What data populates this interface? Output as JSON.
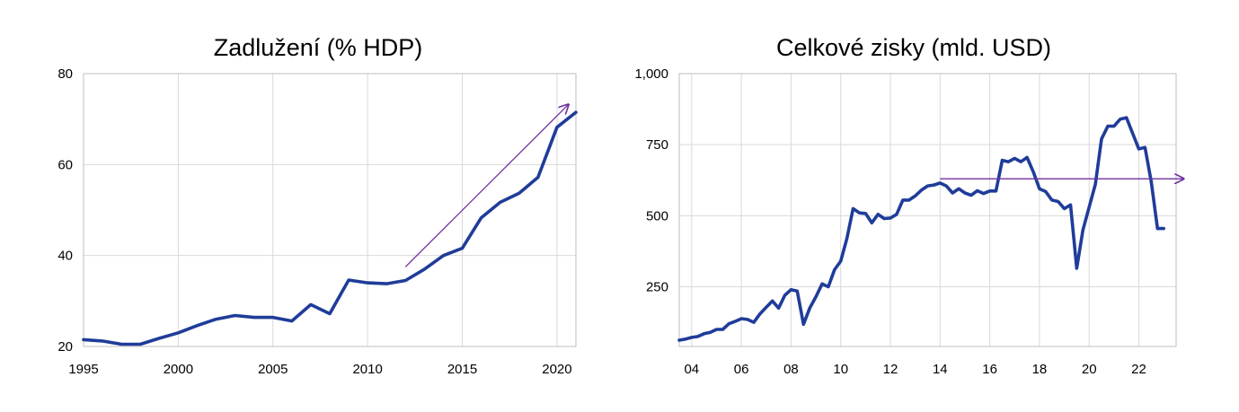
{
  "chart_data": [
    {
      "type": "line",
      "title": "Zadlužení (% HDP)",
      "xlabel": "",
      "ylabel": "",
      "xlim": [
        1995,
        2021
      ],
      "ylim": [
        20,
        80
      ],
      "x_ticks": [
        1995,
        2000,
        2005,
        2010,
        2015,
        2020
      ],
      "x_tick_labels": [
        "1995",
        "2000",
        "2005",
        "2010",
        "2015",
        "2020"
      ],
      "y_ticks": [
        20,
        40,
        60,
        80
      ],
      "y_tick_labels": [
        "20",
        "40",
        "60",
        "80"
      ],
      "grid": true,
      "line_color": "#1F3C99",
      "series": [
        {
          "x": [
            1995,
            1996,
            1997,
            1998,
            1999,
            2000,
            2001,
            2002,
            2003,
            2004,
            2005,
            2006,
            2007,
            2008,
            2009,
            2010,
            2011,
            2012,
            2013,
            2014,
            2015,
            2016,
            2017,
            2018,
            2019,
            2020,
            2021
          ],
          "values": [
            21.5,
            21.2,
            20.5,
            20.5,
            21.8,
            23.0,
            24.6,
            26.0,
            26.8,
            26.4,
            26.4,
            25.6,
            29.2,
            27.2,
            34.6,
            34.0,
            33.8,
            34.5,
            37.0,
            40.0,
            41.6,
            48.3,
            51.7,
            53.7,
            57.2,
            68.2,
            71.5
          ]
        }
      ],
      "annotations": [
        {
          "type": "arrow",
          "color": "#7030A0",
          "from": [
            2012,
            37.5
          ],
          "to": [
            2020.6,
            73.2
          ]
        }
      ]
    },
    {
      "type": "line",
      "title": "Celkové zisky (mld. USD)",
      "xlabel": "",
      "ylabel": "",
      "xlim": [
        2003.5,
        2023.5
      ],
      "ylim": [
        40,
        1000
      ],
      "x_ticks": [
        2004,
        2006,
        2008,
        2010,
        2012,
        2014,
        2016,
        2018,
        2020,
        2022
      ],
      "x_tick_labels": [
        "04",
        "06",
        "08",
        "10",
        "12",
        "14",
        "16",
        "18",
        "20",
        "22"
      ],
      "y_ticks": [
        250,
        500,
        750,
        1000
      ],
      "y_tick_labels": [
        "250",
        "500",
        "750",
        "1,000"
      ],
      "grid": true,
      "line_color": "#1F3C99",
      "series": [
        {
          "x": [
            2003.5,
            2003.75,
            2004.0,
            2004.25,
            2004.5,
            2004.75,
            2005.0,
            2005.25,
            2005.5,
            2005.75,
            2006.0,
            2006.25,
            2006.5,
            2006.75,
            2007.0,
            2007.25,
            2007.5,
            2007.75,
            2008.0,
            2008.25,
            2008.5,
            2008.75,
            2009.0,
            2009.25,
            2009.5,
            2009.75,
            2010.0,
            2010.25,
            2010.5,
            2010.75,
            2011.0,
            2011.25,
            2011.5,
            2011.75,
            2012.0,
            2012.25,
            2012.5,
            2012.75,
            2013.0,
            2013.25,
            2013.5,
            2013.75,
            2014.0,
            2014.25,
            2014.5,
            2014.75,
            2015.0,
            2015.25,
            2015.5,
            2015.75,
            2016.0,
            2016.25,
            2016.5,
            2016.75,
            2017.0,
            2017.25,
            2017.5,
            2017.75,
            2018.0,
            2018.25,
            2018.5,
            2018.75,
            2019.0,
            2019.25,
            2019.5,
            2019.75,
            2020.0,
            2020.25,
            2020.5,
            2020.75,
            2021.0,
            2021.25,
            2021.5,
            2021.75,
            2022.0,
            2022.25,
            2022.5,
            2022.75,
            2023.0
          ],
          "values": [
            62,
            66,
            72,
            75,
            85,
            90,
            100,
            100,
            120,
            128,
            138,
            135,
            125,
            155,
            178,
            200,
            175,
            220,
            240,
            235,
            118,
            175,
            215,
            260,
            250,
            310,
            340,
            420,
            525,
            510,
            508,
            475,
            505,
            490,
            492,
            505,
            555,
            555,
            570,
            590,
            605,
            608,
            615,
            605,
            580,
            595,
            580,
            572,
            588,
            578,
            587,
            587,
            695,
            690,
            702,
            690,
            705,
            655,
            595,
            585,
            555,
            550,
            525,
            538,
            315,
            450,
            530,
            610,
            770,
            815,
            815,
            840,
            845,
            790,
            735,
            740,
            620,
            455,
            455
          ]
        }
      ],
      "annotations": [
        {
          "type": "arrow",
          "color": "#7030A0",
          "from": [
            2014.0,
            630
          ],
          "to": [
            2023.8,
            630
          ]
        }
      ]
    }
  ]
}
